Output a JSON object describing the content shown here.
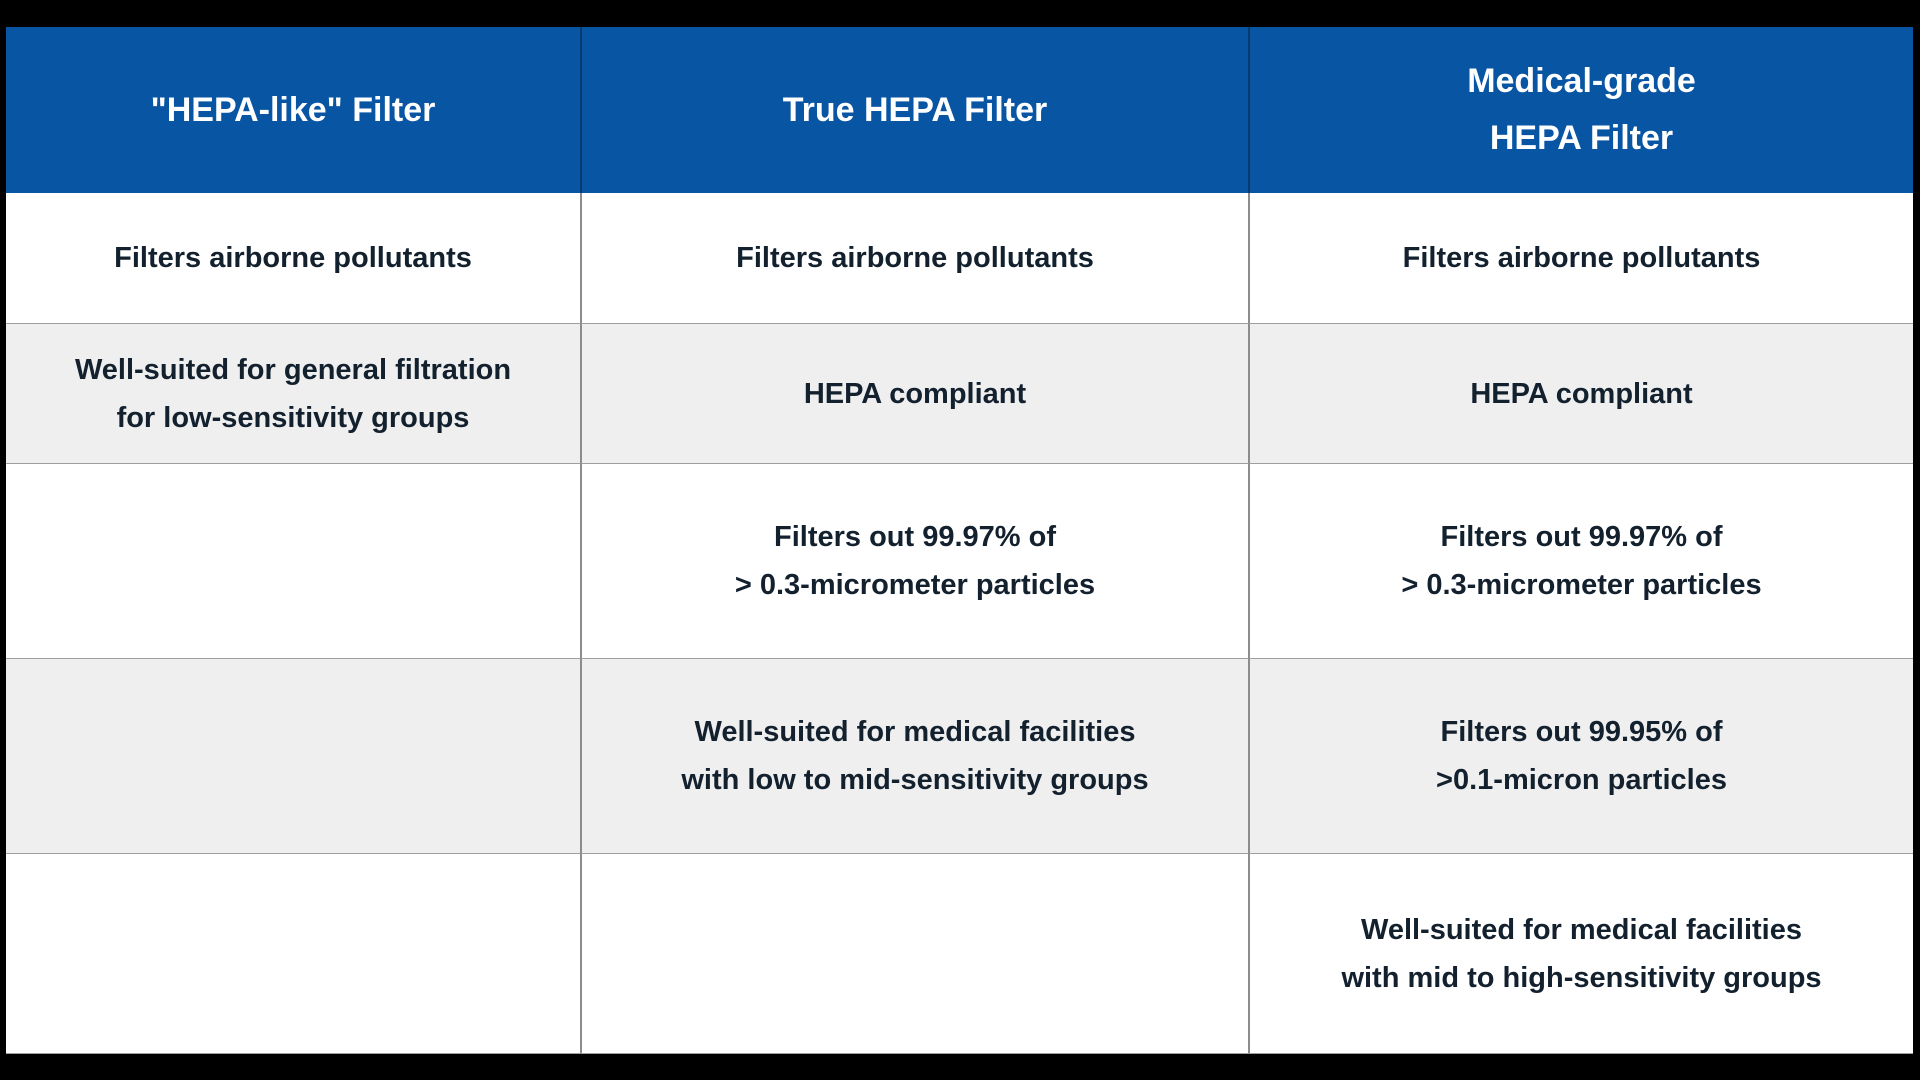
{
  "colors": {
    "canvas_bg": "#000000",
    "header_bg": "#0855a4",
    "header_text": "#ffffff",
    "header_divider": "#0a3a6c",
    "body_text": "#13202e",
    "row_white_bg": "#ffffff",
    "row_gray_bg": "#efefef",
    "column_divider": "#8c8c8c",
    "row_line": "#9e9e9e"
  },
  "table": {
    "headers": [
      {
        "lines": [
          "\"HEPA-like\" Filter"
        ]
      },
      {
        "lines": [
          "True HEPA Filter"
        ]
      },
      {
        "lines": [
          "Medical-grade",
          "HEPA Filter"
        ]
      }
    ],
    "rows": [
      {
        "cells": [
          [
            "Filters airborne pollutants"
          ],
          [
            "Filters airborne pollutants"
          ],
          [
            "Filters airborne pollutants"
          ]
        ]
      },
      {
        "cells": [
          [
            "Well-suited for general filtration",
            "for low-sensitivity groups"
          ],
          [
            "HEPA compliant"
          ],
          [
            "HEPA compliant"
          ]
        ]
      },
      {
        "cells": [
          [],
          [
            "Filters out 99.97% of",
            "> 0.3-micrometer particles"
          ],
          [
            "Filters out 99.97% of",
            "> 0.3-micrometer particles"
          ]
        ]
      },
      {
        "cells": [
          [],
          [
            "Well-suited for medical facilities",
            "with low to mid-sensitivity groups"
          ],
          [
            "Filters out 99.95% of",
            ">0.1-micron particles"
          ]
        ]
      },
      {
        "cells": [
          [],
          [],
          [
            "Well-suited for medical facilities",
            "with mid to high-sensitivity groups"
          ]
        ]
      }
    ]
  }
}
